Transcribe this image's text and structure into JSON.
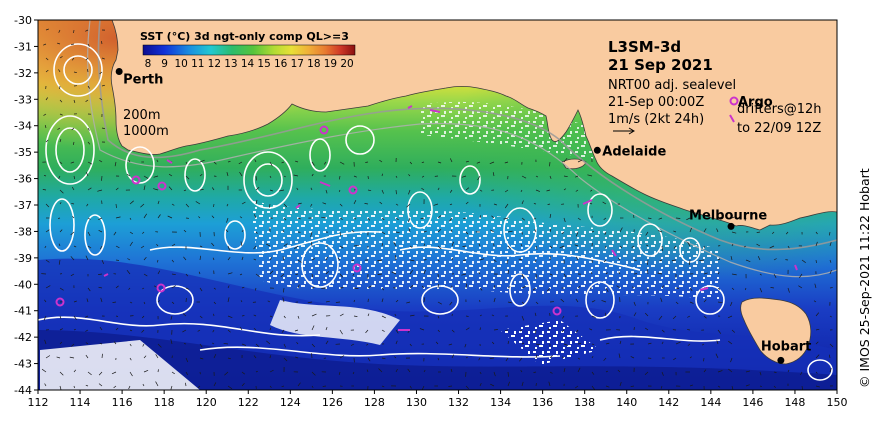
{
  "colorbar": {
    "title": "SST (°C) 3d ngt-only comp QL>=3",
    "labels": [
      "8",
      "9",
      "10",
      "11",
      "12",
      "13",
      "14",
      "15",
      "16",
      "17",
      "18",
      "19",
      "20"
    ]
  },
  "legend": {
    "contour_200": "200m",
    "contour_1000": "1000m"
  },
  "title": {
    "line1": "L3SM-3d",
    "line2": "21 Sep 2021"
  },
  "info": {
    "line1": "NRT00 adj. sealevel",
    "line2": "21-Sep 00:00Z",
    "line3": "1m/s (2kt 24h)"
  },
  "argo": {
    "label": "Argo",
    "drifters_line1": "drifters@12h",
    "drifters_line2": "to 22/09 12Z"
  },
  "cities": [
    {
      "name": "Perth",
      "lon": 115.86,
      "lat": -31.95,
      "dx": 4,
      "dy": 12
    },
    {
      "name": "Adelaide",
      "lon": 138.6,
      "lat": -34.93,
      "dx": 5,
      "dy": 5
    },
    {
      "name": "Melbourne",
      "lon": 144.96,
      "lat": -37.81,
      "dx": -42,
      "dy": -7
    },
    {
      "name": "Hobart",
      "lon": 147.33,
      "lat": -42.88,
      "dx": -20,
      "dy": -10
    }
  ],
  "axes": {
    "x_ticks": [
      "112",
      "114",
      "116",
      "118",
      "120",
      "122",
      "124",
      "126",
      "128",
      "130",
      "132",
      "134",
      "136",
      "138",
      "140",
      "142",
      "144",
      "146",
      "148",
      "150"
    ],
    "y_ticks": [
      "-30",
      "-31",
      "-32",
      "-33",
      "-34",
      "-35",
      "-36",
      "-37",
      "-38",
      "-39",
      "-40",
      "-41",
      "-42",
      "-43",
      "-44"
    ],
    "lon_range": [
      112,
      150
    ],
    "lat_range": [
      -44,
      -30
    ]
  },
  "credit": "© IMOS 25-Sep-2021 11:22 Hobart",
  "colors": {
    "land": "#f9cba0",
    "coast": "#3b3b3b",
    "contour": "#ffffff",
    "argo": "#cc33cc",
    "city": "#000000"
  }
}
